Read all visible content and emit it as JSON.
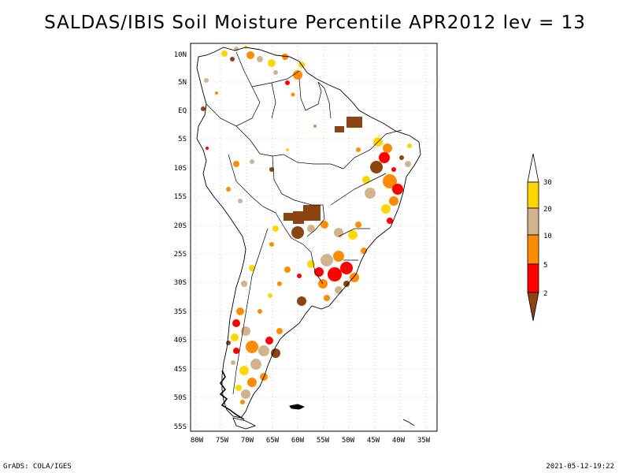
{
  "title": "SALDAS/IBIS Soil Moisture Percentile APR2012 lev = 13",
  "footer": {
    "left": "GrADS: COLA/IGES",
    "right": "2021-05-12-19:22"
  },
  "map": {
    "lat_ticks": [
      "10N",
      "5N",
      "EQ",
      "5S",
      "10S",
      "15S",
      "20S",
      "25S",
      "30S",
      "35S",
      "40S",
      "45S",
      "50S",
      "55S"
    ],
    "lon_ticks": [
      "80W",
      "75W",
      "70W",
      "65W",
      "60W",
      "55W",
      "50W",
      "45W",
      "40W",
      "35W"
    ],
    "lon_range": [
      -81,
      -33
    ],
    "lat_range": [
      -56,
      12
    ],
    "grid": true
  },
  "legend": {
    "labels": [
      "2",
      "5",
      "10",
      "20",
      "30"
    ],
    "colors": {
      "below_2": "#8B4513",
      "2_5": "#FF0000",
      "5_10": "#FF8C00",
      "10_20": "#D2B48C",
      "20_30": "#FFD700",
      "above_30": "#FFFFFF"
    }
  },
  "colors": {
    "coastline": "#000000",
    "grid": "#aaaaaa"
  }
}
